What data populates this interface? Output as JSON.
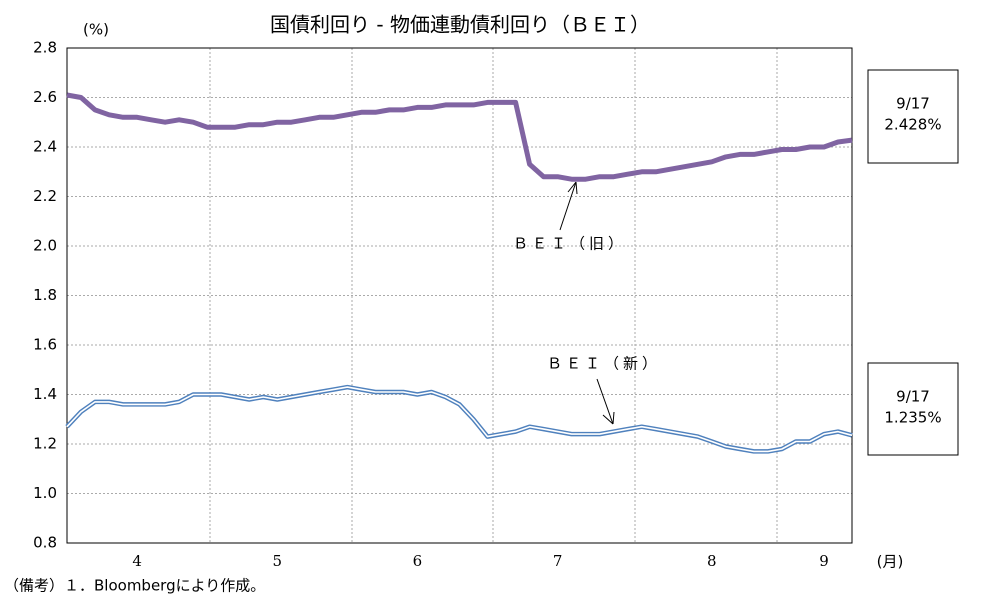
{
  "chart_data": {
    "type": "line",
    "title": "国債利回り - 物価連動債利回り（ＢＥＩ）",
    "y_label": "(%)",
    "x_label": "(月)",
    "categories": [
      null,
      null,
      null,
      null,
      null,
      "4",
      null,
      null,
      null,
      null,
      null,
      null,
      null,
      null,
      null,
      "5",
      null,
      null,
      null,
      null,
      null,
      null,
      null,
      null,
      null,
      "6",
      null,
      null,
      null,
      null,
      null,
      null,
      null,
      null,
      null,
      "7",
      null,
      null,
      null,
      null,
      null,
      null,
      null,
      null,
      null,
      null,
      "8",
      null,
      null,
      null,
      null,
      null,
      null,
      null,
      "9",
      null,
      null
    ],
    "series": [
      {
        "name": "ＢＥＩ（旧）",
        "color": "#8064a2",
        "values": [
          2.61,
          2.6,
          2.55,
          2.53,
          2.52,
          2.52,
          2.51,
          2.5,
          2.51,
          2.5,
          2.48,
          2.48,
          2.48,
          2.49,
          2.49,
          2.5,
          2.5,
          2.51,
          2.52,
          2.52,
          2.53,
          2.54,
          2.54,
          2.55,
          2.55,
          2.56,
          2.56,
          2.57,
          2.57,
          2.57,
          2.58,
          2.58,
          2.58,
          2.33,
          2.28,
          2.28,
          2.27,
          2.27,
          2.28,
          2.28,
          2.29,
          2.3,
          2.3,
          2.31,
          2.32,
          2.33,
          2.34,
          2.36,
          2.37,
          2.37,
          2.38,
          2.39,
          2.39,
          2.4,
          2.4,
          2.42,
          2.428
        ]
      },
      {
        "name": "ＢＥＩ（新）",
        "color": "#4f81bd",
        "values": [
          1.27,
          1.33,
          1.37,
          1.37,
          1.36,
          1.36,
          1.36,
          1.36,
          1.37,
          1.4,
          1.4,
          1.4,
          1.39,
          1.38,
          1.39,
          1.38,
          1.39,
          1.4,
          1.41,
          1.42,
          1.43,
          1.42,
          1.41,
          1.41,
          1.41,
          1.4,
          1.41,
          1.39,
          1.36,
          1.3,
          1.23,
          1.24,
          1.25,
          1.27,
          1.26,
          1.25,
          1.24,
          1.24,
          1.24,
          1.25,
          1.26,
          1.27,
          1.26,
          1.25,
          1.24,
          1.23,
          1.21,
          1.19,
          1.18,
          1.17,
          1.17,
          1.18,
          1.21,
          1.21,
          1.24,
          1.25,
          1.235
        ]
      }
    ],
    "ylim": [
      0.8,
      2.8
    ],
    "yticks": [
      0.8,
      {
        "value": 1.0,
        "label": "1.0"
      },
      1.2,
      1.4,
      1.6,
      1.8,
      {
        "value": 2.0,
        "label": "2.0"
      },
      2.2,
      2.4,
      2.6,
      2.8
    ],
    "grid": true,
    "callouts": [
      {
        "date": "9/17",
        "value": "2.428%"
      },
      {
        "date": "9/17",
        "value": "1.235%"
      }
    ],
    "note": "（備考）１．Bloombergにより作成。"
  }
}
